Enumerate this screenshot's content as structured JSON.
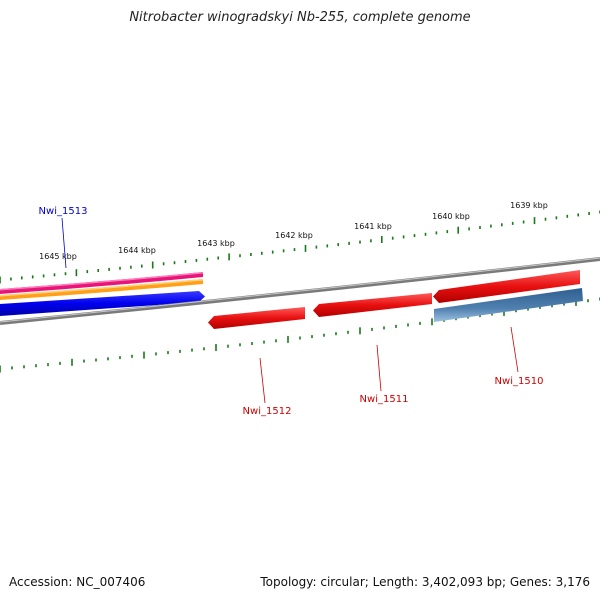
{
  "title": "Nitrobacter winogradskyi Nb-255, complete genome",
  "footer": {
    "accession": "Accession: NC_007406",
    "summary": "Topology: circular; Length: 3,402,093 bp; Genes: 3,176"
  },
  "colors": {
    "backbone": "#808080",
    "ticks": "#1a7a1a",
    "red_gene": "#e81010",
    "blue_gene": "#0000ee",
    "steel_gene": "#4f80b0",
    "pink_track": "#e8147a",
    "orange_track": "#ff9f1a",
    "label_red": "#cc0000",
    "label_blue": "#0000cc"
  },
  "scale_labels": [
    "1645 kbp",
    "1644 kbp",
    "1643 kbp",
    "1642 kbp",
    "1641 kbp",
    "1640 kbp",
    "1639 kbp"
  ],
  "genes": [
    {
      "name": "Nwi_1513",
      "color_key": "blue_gene",
      "label_color_key": "label_blue"
    },
    {
      "name": "Nwi_1512",
      "color_key": "red_gene",
      "label_color_key": "label_red"
    },
    {
      "name": "Nwi_1511",
      "color_key": "red_gene",
      "label_color_key": "label_red"
    },
    {
      "name": "Nwi_1510",
      "color_key": "steel_gene",
      "label_color_key": "label_red"
    }
  ]
}
